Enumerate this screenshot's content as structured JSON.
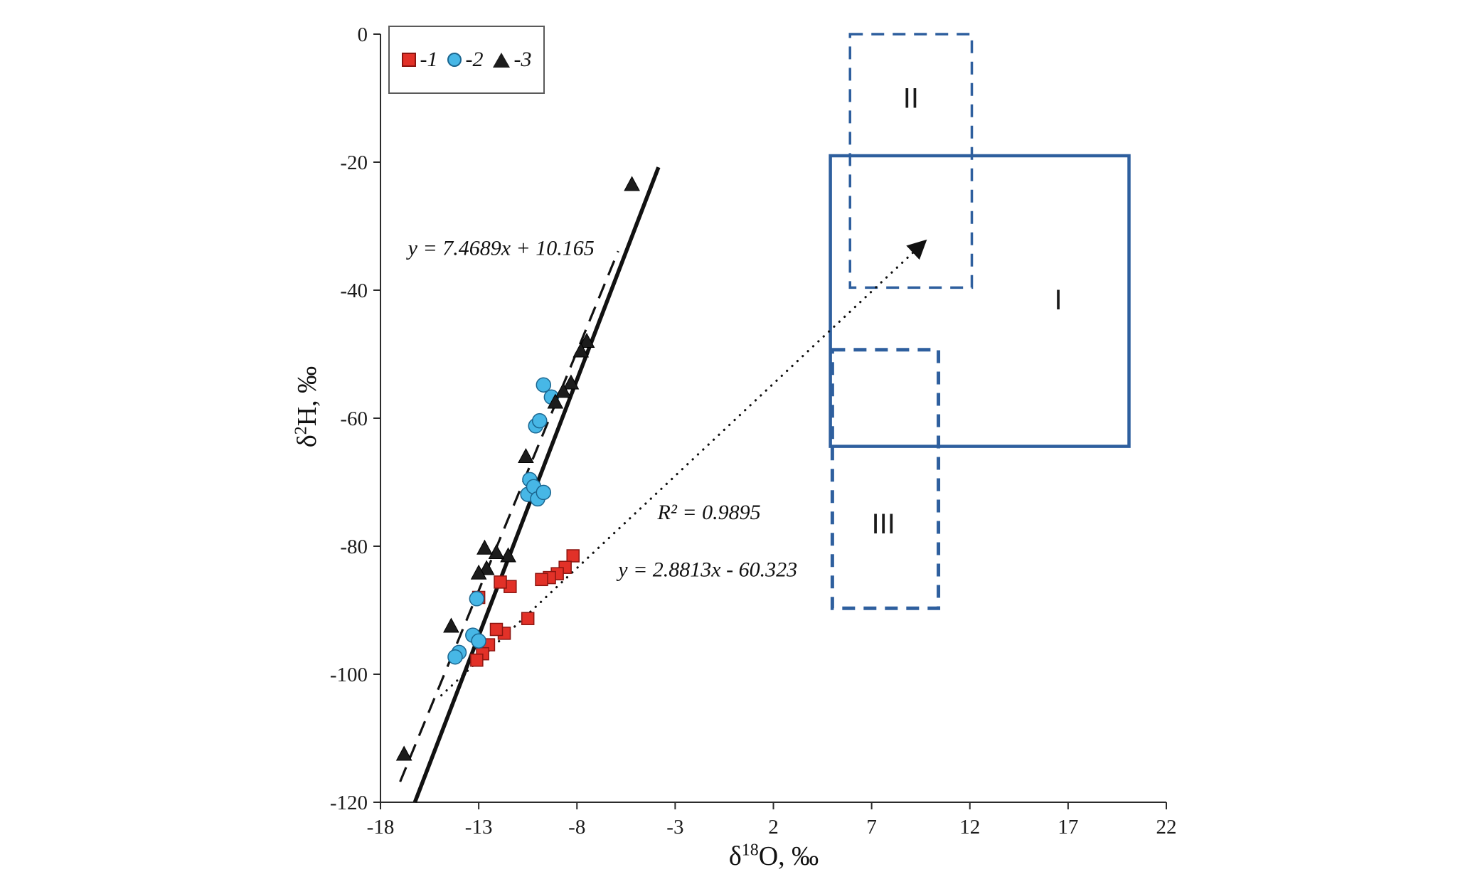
{
  "figure": {
    "background": "#ffffff",
    "axis_color": "#2b2b2b",
    "line_color": "#111111",
    "box_color": "#2e5f9e",
    "region_label_color": "#1a1a1a"
  },
  "legend": {
    "items": [
      {
        "label": "-1",
        "marker": "square"
      },
      {
        "label": "-2",
        "marker": "circle"
      },
      {
        "label": "-3",
        "marker": "triangle"
      }
    ]
  },
  "chart_data": {
    "type": "scatter",
    "xlabel": "δ18O, ‰",
    "ylabel": "δ2H, ‰",
    "xlabel_parts": {
      "base": "δ",
      "sup": "18",
      "rest": "O, ‰"
    },
    "ylabel_parts": {
      "base": "δ",
      "sup": "2",
      "rest": "H, ‰"
    },
    "xlim": [
      -18,
      22
    ],
    "ylim": [
      -120,
      0
    ],
    "x_ticks": [
      -18,
      -13,
      -8,
      -3,
      2,
      7,
      12,
      17,
      22
    ],
    "y_ticks": [
      0,
      -20,
      -40,
      -60,
      -80,
      -100,
      -120
    ],
    "grid": false,
    "legend_position": "top-left-inside",
    "series": [
      {
        "name": "1",
        "legend_label": "-1",
        "marker": "square",
        "fill": "#e23128",
        "edge": "#8c1510",
        "points": [
          [
            -8.2,
            -81.5
          ],
          [
            -8.6,
            -83.3
          ],
          [
            -9.0,
            -84.3
          ],
          [
            -9.4,
            -84.9
          ],
          [
            -9.8,
            -85.2
          ],
          [
            -11.4,
            -86.3
          ],
          [
            -11.9,
            -85.6
          ],
          [
            -13.0,
            -88.0
          ],
          [
            -10.5,
            -91.3
          ],
          [
            -11.7,
            -93.6
          ],
          [
            -12.1,
            -93.0
          ],
          [
            -12.5,
            -95.4
          ],
          [
            -12.8,
            -96.8
          ],
          [
            -13.1,
            -97.8
          ]
        ]
      },
      {
        "name": "2",
        "legend_label": "-2",
        "marker": "circle",
        "fill": "#47b7e6",
        "edge": "#1b6690",
        "points": [
          [
            -9.7,
            -54.8
          ],
          [
            -9.3,
            -56.7
          ],
          [
            -10.1,
            -61.2
          ],
          [
            -9.9,
            -60.4
          ],
          [
            -10.4,
            -69.6
          ],
          [
            -10.5,
            -71.9
          ],
          [
            -10.2,
            -70.7
          ],
          [
            -10.0,
            -72.6
          ],
          [
            -9.7,
            -71.6
          ],
          [
            -13.1,
            -88.2
          ],
          [
            -13.3,
            -93.9
          ],
          [
            -13.0,
            -94.8
          ],
          [
            -14.0,
            -96.6
          ],
          [
            -14.2,
            -97.3
          ]
        ]
      },
      {
        "name": "3",
        "legend_label": "-3",
        "marker": "triangle",
        "fill": "#1c1c1c",
        "edge": "#000000",
        "points": [
          [
            -5.2,
            -23.5
          ],
          [
            -7.5,
            -48.0
          ],
          [
            -7.8,
            -49.5
          ],
          [
            -8.3,
            -54.5
          ],
          [
            -8.7,
            -55.8
          ],
          [
            -9.1,
            -57.5
          ],
          [
            -10.6,
            -66.0
          ],
          [
            -11.5,
            -81.5
          ],
          [
            -12.1,
            -81.0
          ],
          [
            -12.7,
            -80.3
          ],
          [
            -12.6,
            -83.5
          ],
          [
            -13.0,
            -84.2
          ],
          [
            -14.4,
            -92.5
          ],
          [
            -16.8,
            -112.5
          ]
        ]
      }
    ],
    "lines": [
      {
        "name": "solid-meteoric-line",
        "style": "solid",
        "width": 5.5,
        "x1": -16.25,
        "y1": -120.0,
        "x2": -3.85,
        "y2": -20.8
      },
      {
        "name": "dashed-regression-line",
        "style": "dashed",
        "width": 3.2,
        "x1": -17.0,
        "y1": -116.8,
        "x2": -5.9,
        "y2": -33.9
      },
      {
        "name": "dotted-evaporation-arrow",
        "style": "dotted",
        "width": 3.2,
        "arrow": true,
        "x1": -14.9,
        "y1": -103.3,
        "x2": 9.6,
        "y2": -32.7
      }
    ],
    "boxes": [
      {
        "label": "I",
        "style": "solid",
        "stroke_width": 4.5,
        "x_min": 4.9,
        "x_max": 20.1,
        "y_min": -64.4,
        "y_max": -19.0,
        "label_x": 16.5,
        "label_y": -43.0
      },
      {
        "label": "II",
        "style": "dashed",
        "stroke_width": 3.5,
        "x_min": 5.9,
        "x_max": 12.1,
        "y_min": -39.6,
        "y_max": 0.0,
        "label_x": 9.0,
        "label_y": -11.5
      },
      {
        "label": "III",
        "style": "dashed",
        "stroke_width": 5,
        "x_min": 5.0,
        "x_max": 10.4,
        "y_min": -89.7,
        "y_max": -49.3,
        "label_x": 7.6,
        "label_y": -78.0
      }
    ],
    "annotations": [
      {
        "name": "dashed-line-equation",
        "text": "y = 7.4689x + 10.165",
        "x": -16.6,
        "y": -34.5
      },
      {
        "name": "r-squared-value",
        "text": "R² = 0.9895",
        "x": -3.9,
        "y": -75.8
      },
      {
        "name": "dotted-line-equation",
        "text": "y = 2.8813x - 60.323",
        "x": -5.9,
        "y": -84.7
      }
    ]
  }
}
